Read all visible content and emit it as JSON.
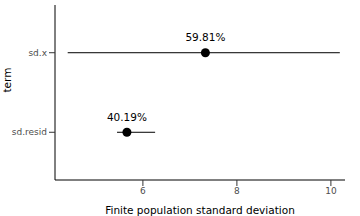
{
  "chart_data": {
    "type": "pointrange",
    "orientation": "horizontal",
    "categories": [
      "sd.x",
      "sd.resid"
    ],
    "values": [
      7.33,
      5.66
    ],
    "lower": [
      4.4,
      5.45
    ],
    "upper": [
      10.19,
      6.26
    ],
    "annotations": [
      "59.81%",
      "40.19%"
    ],
    "x_label": "Finite population standard deviation",
    "y_label": "term",
    "xlim": [
      4.13,
      10.3
    ],
    "xticks": [
      6,
      8,
      10
    ],
    "color": "#000000",
    "grid": false
  }
}
